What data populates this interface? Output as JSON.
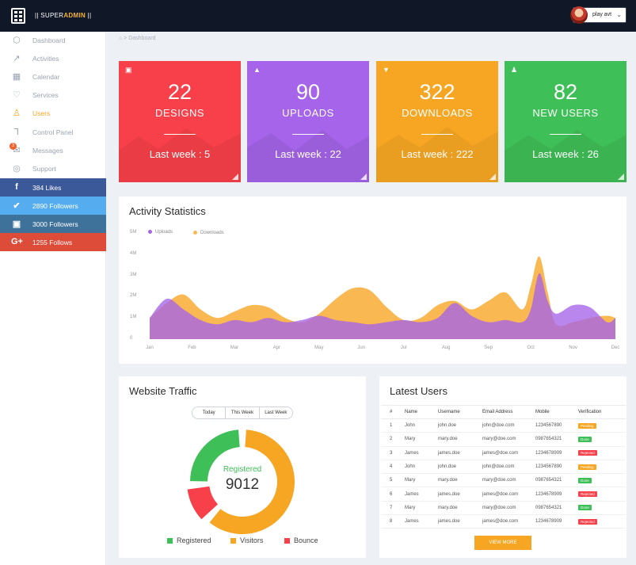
{
  "header": {
    "logo_prefix": "|| SUPER",
    "logo_accent": "ADMIN",
    "logo_suffix": " ||",
    "user_name": "play avt"
  },
  "sidebar": {
    "items": [
      {
        "label": "Dashboard",
        "icon": "cube-icon"
      },
      {
        "label": "Activities",
        "icon": "activity-icon"
      },
      {
        "label": "Calendar",
        "icon": "calendar-icon"
      },
      {
        "label": "Services",
        "icon": "heart-icon"
      },
      {
        "label": "Users",
        "icon": "users-icon"
      },
      {
        "label": "Control Panel",
        "icon": "usb-icon"
      },
      {
        "label": "Messages",
        "icon": "envelope-icon",
        "badge": "3"
      },
      {
        "label": "Support",
        "icon": "globe-icon"
      }
    ],
    "social": [
      {
        "label": "384 Likes",
        "icon": "f",
        "color": "#3b5998"
      },
      {
        "label": "2890 Followers",
        "icon": "t",
        "color": "#55acee"
      },
      {
        "label": "3000 Followers",
        "icon": "ig",
        "color": "#3f729b"
      },
      {
        "label": "1255 Follows",
        "icon": "G+",
        "color": "#dd4b39"
      }
    ]
  },
  "breadcrumb": "Dashboard",
  "stats": [
    {
      "value": "22",
      "label": "DESIGNS",
      "last_week": "Last week : 5",
      "color": "#f8404a"
    },
    {
      "value": "90",
      "label": "UPLOADS",
      "last_week": "Last week : 22",
      "color": "#a564e9"
    },
    {
      "value": "322",
      "label": "DOWNLOADS",
      "last_week": "Last week : 222",
      "color": "#f6a623"
    },
    {
      "value": "82",
      "label": "NEW USERS",
      "last_week": "Last week : 26",
      "color": "#3fbf57"
    }
  ],
  "activity": {
    "title": "Activity Statistics",
    "legend": [
      "Uploads",
      "Downloads"
    ],
    "colors": {
      "uploads": "#a564e9",
      "downloads": "#f9b851"
    }
  },
  "chart_data": {
    "type": "area",
    "title": "Activity Statistics",
    "x": [
      "Jan",
      "Feb",
      "Mar",
      "Apr",
      "May",
      "Jun",
      "Jul",
      "Aug",
      "Sep",
      "Oct",
      "Nov",
      "Dec"
    ],
    "ylabels": [
      "0",
      "1M",
      "2M",
      "3M",
      "4M",
      "5M"
    ],
    "ylim": [
      0,
      5
    ],
    "series": [
      {
        "name": "Downloads",
        "x": [
          0,
          0.4,
          0.8,
          1.2,
          1.6,
          2,
          2.4,
          2.8,
          3.2,
          3.6,
          4,
          4.4,
          4.8,
          5.2,
          5.6,
          6,
          6.4,
          6.8,
          7.2,
          7.6,
          8,
          8.4,
          8.8,
          9,
          9.2,
          9.4,
          9.6,
          10,
          10.4,
          10.8,
          11
        ],
        "values": [
          1.0,
          1.7,
          2.1,
          1.4,
          1.0,
          1.3,
          1.6,
          1.5,
          1.0,
          0.8,
          1.2,
          1.9,
          2.4,
          2.3,
          1.5,
          0.9,
          1.0,
          1.6,
          1.8,
          1.4,
          1.8,
          2.2,
          1.4,
          2.5,
          3.9,
          2.2,
          0.7,
          0.8,
          1.0,
          1.1,
          1.0
        ]
      },
      {
        "name": "Uploads",
        "x": [
          0,
          0.4,
          0.8,
          1.2,
          1.6,
          2,
          2.4,
          2.8,
          3.2,
          3.6,
          4,
          4.4,
          4.8,
          5.2,
          5.6,
          6,
          6.4,
          6.8,
          7.2,
          7.6,
          8,
          8.4,
          8.8,
          9,
          9.2,
          9.4,
          9.6,
          10,
          10.4,
          10.8,
          11
        ],
        "values": [
          1.0,
          1.9,
          1.4,
          0.9,
          0.7,
          0.9,
          0.8,
          1.0,
          0.8,
          0.9,
          1.1,
          0.9,
          0.8,
          0.7,
          0.8,
          0.9,
          0.8,
          1.0,
          1.7,
          1.1,
          0.8,
          0.9,
          0.8,
          1.4,
          3.1,
          1.8,
          1.2,
          1.6,
          1.5,
          0.8,
          1.0
        ]
      }
    ]
  },
  "traffic": {
    "title": "Website Traffic",
    "filters": [
      "Today",
      "This Week",
      "Last Week"
    ],
    "center_label": "Registered",
    "center_value": "9012",
    "legend": [
      "Registered",
      "Visitors",
      "Bounce"
    ],
    "colors": {
      "registered": "#3fbf57",
      "visitors": "#f6a623",
      "bounce": "#f8404a"
    },
    "shares": {
      "registered": 0.26,
      "visitors": 0.62,
      "bounce": 0.12
    }
  },
  "latest_users": {
    "title": "Latest Users",
    "columns": [
      "#",
      "Name",
      "Username",
      "Email Address",
      "Mobile",
      "Verification"
    ],
    "rows": [
      [
        "1",
        "John",
        "john.doe",
        "john@doe.com",
        "1234567890",
        "Pending"
      ],
      [
        "2",
        "Mary",
        "mary.doe",
        "mary@doe.com",
        "0987654321",
        "Done"
      ],
      [
        "3",
        "James",
        "james.doe",
        "james@doe.com",
        "1234678909",
        "Rejected"
      ],
      [
        "4",
        "John",
        "john.doe",
        "john@doe.com",
        "1234567890",
        "Pending"
      ],
      [
        "5",
        "Mary",
        "mary.doe",
        "mary@doe.com",
        "0987654321",
        "Done"
      ],
      [
        "6",
        "James",
        "james.doe",
        "james@doe.com",
        "1234678909",
        "Rejected"
      ],
      [
        "7",
        "Mary",
        "mary.doe",
        "mary@doe.com",
        "0987654321",
        "Done"
      ],
      [
        "8",
        "James",
        "james.doe",
        "james@doe.com",
        "1234678909",
        "Rejected"
      ]
    ],
    "badge_colors": {
      "Pending": "#f6a623",
      "Done": "#3fbf57",
      "Rejected": "#f8404a"
    },
    "view_more": "VIEW MORE"
  }
}
